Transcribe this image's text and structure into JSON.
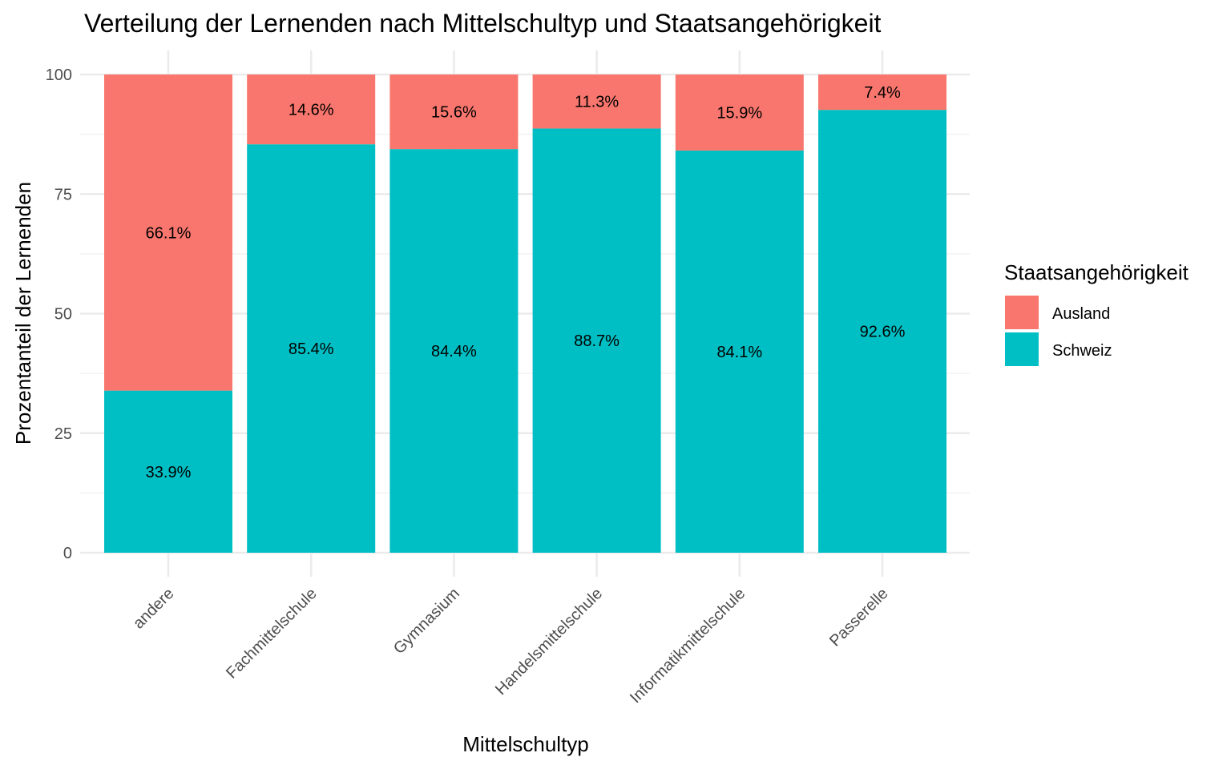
{
  "chart_data": {
    "type": "bar",
    "stacked": true,
    "title": "Verteilung der Lernenden nach Mittelschultyp und Staatsangehörigkeit",
    "xlabel": "Mittelschultyp",
    "ylabel": "Prozentanteil der Lernenden",
    "ylim": [
      0,
      100
    ],
    "yticks": [
      "0",
      "25",
      "50",
      "75",
      "100"
    ],
    "grid": true,
    "categories": [
      "andere",
      "Fachmittelschule",
      "Gymnasium",
      "Handelsmittelschule",
      "Informatikmittelschule",
      "Passerelle"
    ],
    "series": [
      {
        "name": "Schweiz",
        "color": "#00BFC4",
        "values": [
          33.9,
          85.4,
          84.4,
          88.7,
          84.1,
          92.6
        ],
        "labels": [
          "33.9%",
          "85.4%",
          "84.4%",
          "88.7%",
          "84.1%",
          "92.6%"
        ]
      },
      {
        "name": "Ausland",
        "color": "#F8766D",
        "values": [
          66.1,
          14.6,
          15.6,
          11.3,
          15.9,
          7.4
        ],
        "labels": [
          "66.1%",
          "14.6%",
          "15.6%",
          "11.3%",
          "15.9%",
          "7.4%"
        ]
      }
    ],
    "legend": {
      "title": "Staatsangehörigkeit",
      "placement": "right",
      "entries": [
        "Ausland",
        "Schweiz"
      ]
    }
  }
}
